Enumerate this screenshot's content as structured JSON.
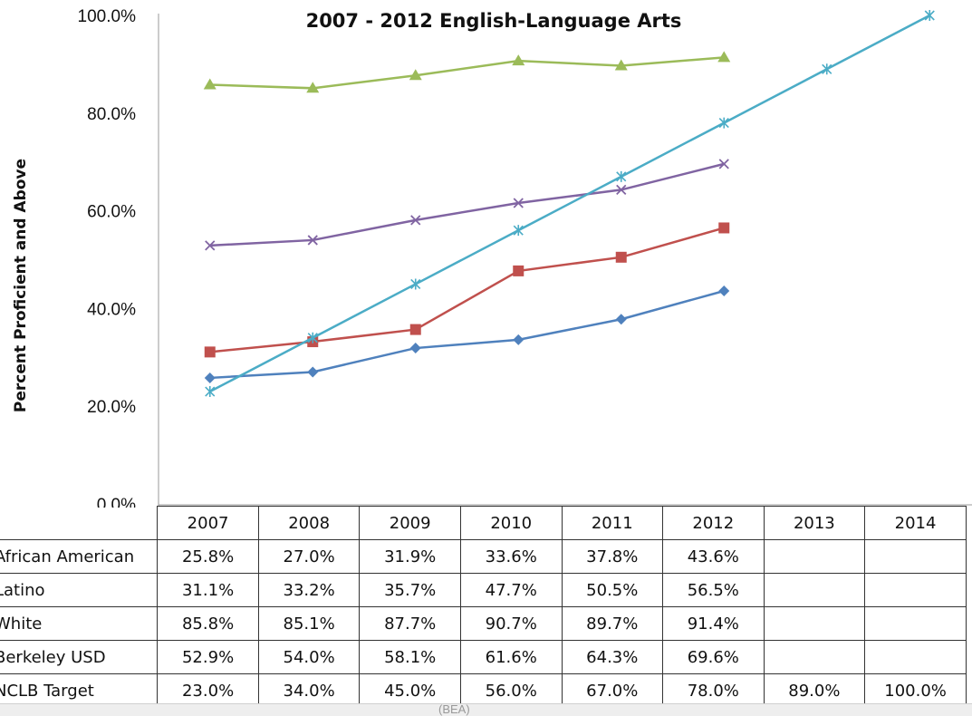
{
  "chart_data": {
    "type": "line",
    "title": "2007 - 2012 English-Language Arts",
    "ylabel": "Percent Proficient and Above",
    "xlabel": "",
    "ylim": [
      0,
      100
    ],
    "yticks": [
      "0.0%",
      "20.0%",
      "40.0%",
      "60.0%",
      "80.0%",
      "100.0%"
    ],
    "categories": [
      "2007",
      "2008",
      "2009",
      "2010",
      "2011",
      "2012",
      "2013",
      "2014"
    ],
    "grid": false,
    "legend": "data-table-below",
    "series": [
      {
        "name": "African American",
        "color": "#4f81bd",
        "marker": "diamond",
        "values": [
          25.8,
          27.0,
          31.9,
          33.6,
          37.8,
          43.6,
          null,
          null
        ],
        "labels": [
          "25.8%",
          "27.0%",
          "31.9%",
          "33.6%",
          "37.8%",
          "43.6%",
          "",
          ""
        ]
      },
      {
        "name": "Latino",
        "color": "#c0504d",
        "marker": "square",
        "values": [
          31.1,
          33.2,
          35.7,
          47.7,
          50.5,
          56.5,
          null,
          null
        ],
        "labels": [
          "31.1%",
          "33.2%",
          "35.7%",
          "47.7%",
          "50.5%",
          "56.5%",
          "",
          ""
        ]
      },
      {
        "name": "White",
        "color": "#9bbb59",
        "marker": "triangle",
        "values": [
          85.8,
          85.1,
          87.7,
          90.7,
          89.7,
          91.4,
          null,
          null
        ],
        "labels": [
          "85.8%",
          "85.1%",
          "87.7%",
          "90.7%",
          "89.7%",
          "91.4%",
          "",
          ""
        ]
      },
      {
        "name": "Berkeley USD",
        "color": "#8064a2",
        "marker": "x",
        "values": [
          52.9,
          54.0,
          58.1,
          61.6,
          64.3,
          69.6,
          null,
          null
        ],
        "labels": [
          "52.9%",
          "54.0%",
          "58.1%",
          "61.6%",
          "64.3%",
          "69.6%",
          "",
          ""
        ]
      },
      {
        "name": "NCLB Target",
        "color": "#4bacc6",
        "marker": "star",
        "values": [
          23.0,
          34.0,
          45.0,
          56.0,
          67.0,
          78.0,
          89.0,
          100.0
        ],
        "labels": [
          "23.0%",
          "34.0%",
          "45.0%",
          "56.0%",
          "67.0%",
          "78.0%",
          "89.0%",
          "100.0%"
        ]
      }
    ]
  },
  "footer_text": "(BEA)"
}
